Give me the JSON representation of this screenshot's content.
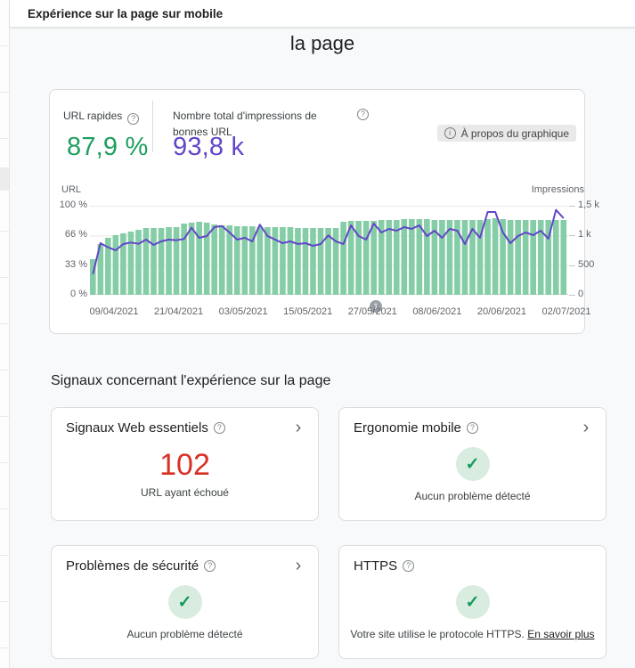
{
  "icons": {
    "help": "?",
    "info": "i",
    "chevron": "›",
    "check": "✓"
  },
  "header": {
    "title": "Expérience sur la page sur mobile"
  },
  "page_title_wrapped_line": "la page",
  "summary": {
    "metric1": {
      "label": "URL rapides",
      "value": "87,9 %",
      "color": "#1e9e5c"
    },
    "metric2": {
      "label": "Nombre total d'impressions de bonnes URL",
      "value": "93,8 k",
      "color": "#6246c8"
    },
    "about_button": "À propos du graphique"
  },
  "chart_data": {
    "type": "bar",
    "title": "",
    "left_axis": {
      "label": "URL",
      "ticks": [
        "100 %",
        "66 %",
        "33 %",
        "0 %"
      ],
      "range": [
        0,
        100
      ]
    },
    "right_axis": {
      "label": "Impressions",
      "ticks": [
        "1,5 k",
        "1 k",
        "500",
        "0"
      ],
      "range": [
        0,
        1500
      ]
    },
    "x_labels": [
      "09/04/2021",
      "21/04/2021",
      "03/05/2021",
      "15/05/2021",
      "27/05/2021",
      "08/06/2021",
      "20/06/2021",
      "02/07/2021"
    ],
    "grid": true,
    "annotation_badge": "1",
    "series": [
      {
        "name": "URL rapides (%)",
        "kind": "bar",
        "axis": "left",
        "color": "#85cda6",
        "values": [
          40,
          57,
          64,
          67,
          69,
          71,
          73,
          75,
          75,
          75,
          76,
          76,
          80,
          81,
          82,
          81,
          79,
          78,
          78,
          77,
          77,
          77,
          76,
          76,
          76,
          76,
          76,
          75,
          75,
          75,
          75,
          75,
          75,
          82,
          83,
          83,
          83,
          83,
          84,
          84,
          84,
          85,
          85,
          85,
          85,
          84,
          84,
          84,
          84,
          84,
          84,
          84,
          85,
          86,
          85,
          84,
          84,
          84,
          84,
          84,
          84,
          84,
          84
        ]
      },
      {
        "name": "Impressions",
        "kind": "line",
        "axis": "right",
        "color": "#6246c8",
        "values": [
          350,
          870,
          800,
          750,
          855,
          880,
          860,
          930,
          840,
          900,
          930,
          920,
          940,
          1130,
          960,
          990,
          1140,
          1160,
          1050,
          930,
          960,
          900,
          1180,
          990,
          930,
          870,
          900,
          855,
          870,
          825,
          855,
          1000,
          900,
          855,
          1170,
          990,
          930,
          1200,
          1050,
          1110,
          1080,
          1140,
          1110,
          1170,
          990,
          1080,
          960,
          1110,
          1080,
          855,
          1110,
          960,
          1395,
          1395,
          1050,
          870,
          990,
          1050,
          1005,
          1080,
          945,
          1430,
          1290
        ]
      }
    ]
  },
  "signals": {
    "heading": "Signaux concernant l'expérience sur la page",
    "cards": [
      {
        "title": "Signaux Web essentiels",
        "value": "102",
        "subtitle": "URL ayant échoué"
      },
      {
        "title": "Ergonomie mobile",
        "subtitle": "Aucun problème détecté"
      },
      {
        "title": "Problèmes de sécurité",
        "subtitle": "Aucun problème détecté"
      },
      {
        "title": "HTTPS",
        "subtitle": "Votre site utilise le protocole HTTPS.",
        "link": "En savoir plus"
      }
    ]
  }
}
